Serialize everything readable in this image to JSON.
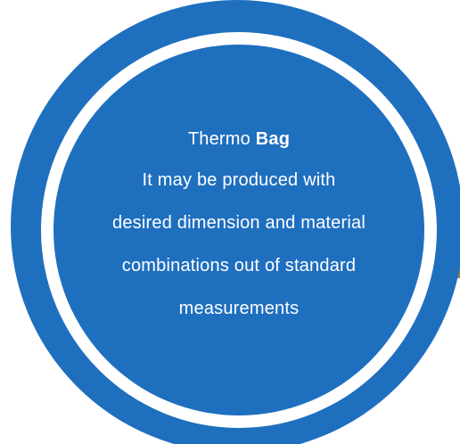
{
  "card": {
    "title_regular": "Thermo",
    "title_bold": "Bag",
    "description_lines": [
      "It may be produced with",
      "desired dimension and material",
      "combinations out of standard",
      "measurements"
    ]
  },
  "colors": {
    "circle_blue": "#1f6fbf",
    "ring_white": "#ffffff",
    "side_tab": "#8c7b4f",
    "text": "#ffffff"
  }
}
